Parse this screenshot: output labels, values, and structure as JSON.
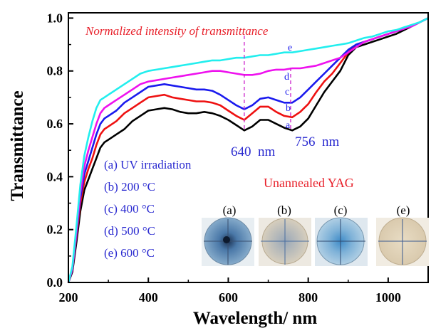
{
  "chart_data": {
    "type": "line",
    "title": "Normalized intensity of transmittance",
    "xlabel": "Wavelength/ nm",
    "ylabel": "Transmittance",
    "xlim": [
      200,
      1100
    ],
    "ylim": [
      0.0,
      1.02
    ],
    "xticks": [
      "200",
      "400",
      "600",
      "800",
      "1000"
    ],
    "yticks": [
      "0.0",
      "0.2",
      "0.4",
      "0.6",
      "0.8",
      "1.0"
    ],
    "grid": false,
    "legend_position": "left",
    "legend": [
      "(a) UV irradiation",
      "(b) 200 °C",
      "(c) 400 °C",
      "(d) 500 °C",
      "(e) 600 °C"
    ],
    "annotations": {
      "peak1": "640  nm",
      "peak2": "756  nm",
      "peak1_x": 640,
      "peak2_x": 756,
      "inset_title": "Unannealed YAG",
      "sample_labels": [
        "(a)",
        "(b)",
        "(c)",
        "(e)"
      ]
    },
    "series": [
      {
        "label": "a",
        "color": "#000000",
        "x": [
          200,
          210,
          220,
          230,
          240,
          250,
          260,
          270,
          280,
          290,
          300,
          320,
          340,
          360,
          380,
          400,
          420,
          440,
          460,
          480,
          500,
          520,
          540,
          560,
          580,
          600,
          620,
          640,
          660,
          680,
          700,
          720,
          740,
          760,
          780,
          800,
          820,
          840,
          860,
          880,
          900,
          920,
          940,
          960,
          980,
          1000,
          1020,
          1040,
          1060,
          1080,
          1100
        ],
        "y": [
          0.0,
          0.04,
          0.15,
          0.27,
          0.35,
          0.39,
          0.43,
          0.47,
          0.51,
          0.53,
          0.54,
          0.56,
          0.58,
          0.61,
          0.63,
          0.65,
          0.655,
          0.66,
          0.655,
          0.645,
          0.64,
          0.64,
          0.645,
          0.64,
          0.63,
          0.615,
          0.595,
          0.575,
          0.59,
          0.615,
          0.615,
          0.6,
          0.585,
          0.575,
          0.59,
          0.62,
          0.67,
          0.72,
          0.76,
          0.8,
          0.86,
          0.89,
          0.9,
          0.91,
          0.92,
          0.93,
          0.94,
          0.955,
          0.97,
          0.985,
          1.0
        ]
      },
      {
        "label": "b",
        "color": "#ee1111",
        "x": [
          200,
          210,
          220,
          230,
          240,
          250,
          260,
          270,
          280,
          290,
          300,
          320,
          340,
          360,
          380,
          400,
          420,
          440,
          460,
          480,
          500,
          520,
          540,
          560,
          580,
          600,
          620,
          640,
          660,
          680,
          700,
          720,
          740,
          760,
          780,
          800,
          820,
          840,
          860,
          880,
          900,
          920,
          940,
          960,
          980,
          1000,
          1020,
          1040,
          1060,
          1080,
          1100
        ],
        "y": [
          0.0,
          0.05,
          0.17,
          0.3,
          0.38,
          0.43,
          0.47,
          0.52,
          0.56,
          0.58,
          0.59,
          0.61,
          0.64,
          0.66,
          0.68,
          0.7,
          0.705,
          0.71,
          0.7,
          0.695,
          0.69,
          0.685,
          0.685,
          0.68,
          0.67,
          0.65,
          0.63,
          0.615,
          0.64,
          0.665,
          0.665,
          0.645,
          0.63,
          0.625,
          0.645,
          0.675,
          0.72,
          0.76,
          0.79,
          0.83,
          0.87,
          0.9,
          0.91,
          0.92,
          0.93,
          0.94,
          0.95,
          0.96,
          0.97,
          0.985,
          1.0
        ]
      },
      {
        "label": "c",
        "color": "#1a1aee",
        "x": [
          200,
          210,
          220,
          230,
          240,
          250,
          260,
          270,
          280,
          290,
          300,
          320,
          340,
          360,
          380,
          400,
          420,
          440,
          460,
          480,
          500,
          520,
          540,
          560,
          580,
          600,
          620,
          640,
          660,
          680,
          700,
          720,
          740,
          760,
          780,
          800,
          820,
          840,
          860,
          880,
          900,
          920,
          940,
          960,
          980,
          1000,
          1020,
          1040,
          1060,
          1080,
          1100
        ],
        "y": [
          0.0,
          0.05,
          0.18,
          0.32,
          0.41,
          0.46,
          0.51,
          0.56,
          0.6,
          0.62,
          0.63,
          0.65,
          0.68,
          0.7,
          0.72,
          0.74,
          0.745,
          0.75,
          0.745,
          0.74,
          0.735,
          0.73,
          0.73,
          0.725,
          0.71,
          0.69,
          0.67,
          0.655,
          0.67,
          0.695,
          0.7,
          0.69,
          0.68,
          0.68,
          0.7,
          0.73,
          0.76,
          0.79,
          0.82,
          0.85,
          0.88,
          0.9,
          0.91,
          0.92,
          0.93,
          0.94,
          0.95,
          0.96,
          0.97,
          0.985,
          1.0
        ]
      },
      {
        "label": "d",
        "color": "#ee11ee",
        "x": [
          200,
          210,
          220,
          230,
          240,
          250,
          260,
          270,
          280,
          290,
          300,
          320,
          340,
          360,
          380,
          400,
          420,
          440,
          460,
          480,
          500,
          520,
          540,
          560,
          580,
          600,
          620,
          640,
          660,
          680,
          700,
          720,
          740,
          760,
          780,
          800,
          820,
          840,
          860,
          880,
          900,
          920,
          940,
          960,
          980,
          1000,
          1020,
          1040,
          1060,
          1080,
          1100
        ],
        "y": [
          0.0,
          0.05,
          0.19,
          0.34,
          0.44,
          0.5,
          0.55,
          0.6,
          0.64,
          0.66,
          0.67,
          0.69,
          0.71,
          0.73,
          0.75,
          0.76,
          0.765,
          0.77,
          0.775,
          0.78,
          0.785,
          0.79,
          0.795,
          0.8,
          0.8,
          0.795,
          0.79,
          0.785,
          0.785,
          0.79,
          0.8,
          0.805,
          0.805,
          0.81,
          0.81,
          0.815,
          0.82,
          0.83,
          0.84,
          0.85,
          0.87,
          0.89,
          0.91,
          0.92,
          0.93,
          0.94,
          0.95,
          0.96,
          0.97,
          0.985,
          1.0
        ]
      },
      {
        "label": "e",
        "color": "#22eeee",
        "x": [
          200,
          210,
          220,
          230,
          240,
          250,
          260,
          270,
          280,
          290,
          300,
          320,
          340,
          360,
          380,
          400,
          420,
          440,
          460,
          480,
          500,
          520,
          540,
          560,
          580,
          600,
          620,
          640,
          660,
          680,
          700,
          720,
          740,
          760,
          780,
          800,
          820,
          840,
          860,
          880,
          900,
          920,
          940,
          960,
          980,
          1000,
          1020,
          1040,
          1060,
          1080,
          1100
        ],
        "y": [
          0.0,
          0.06,
          0.21,
          0.37,
          0.48,
          0.55,
          0.61,
          0.66,
          0.69,
          0.7,
          0.71,
          0.73,
          0.75,
          0.77,
          0.79,
          0.8,
          0.805,
          0.81,
          0.815,
          0.82,
          0.825,
          0.83,
          0.835,
          0.84,
          0.84,
          0.845,
          0.85,
          0.85,
          0.855,
          0.86,
          0.86,
          0.865,
          0.87,
          0.87,
          0.875,
          0.88,
          0.885,
          0.89,
          0.895,
          0.9,
          0.905,
          0.915,
          0.925,
          0.93,
          0.94,
          0.95,
          0.955,
          0.965,
          0.975,
          0.985,
          1.0
        ]
      }
    ]
  }
}
